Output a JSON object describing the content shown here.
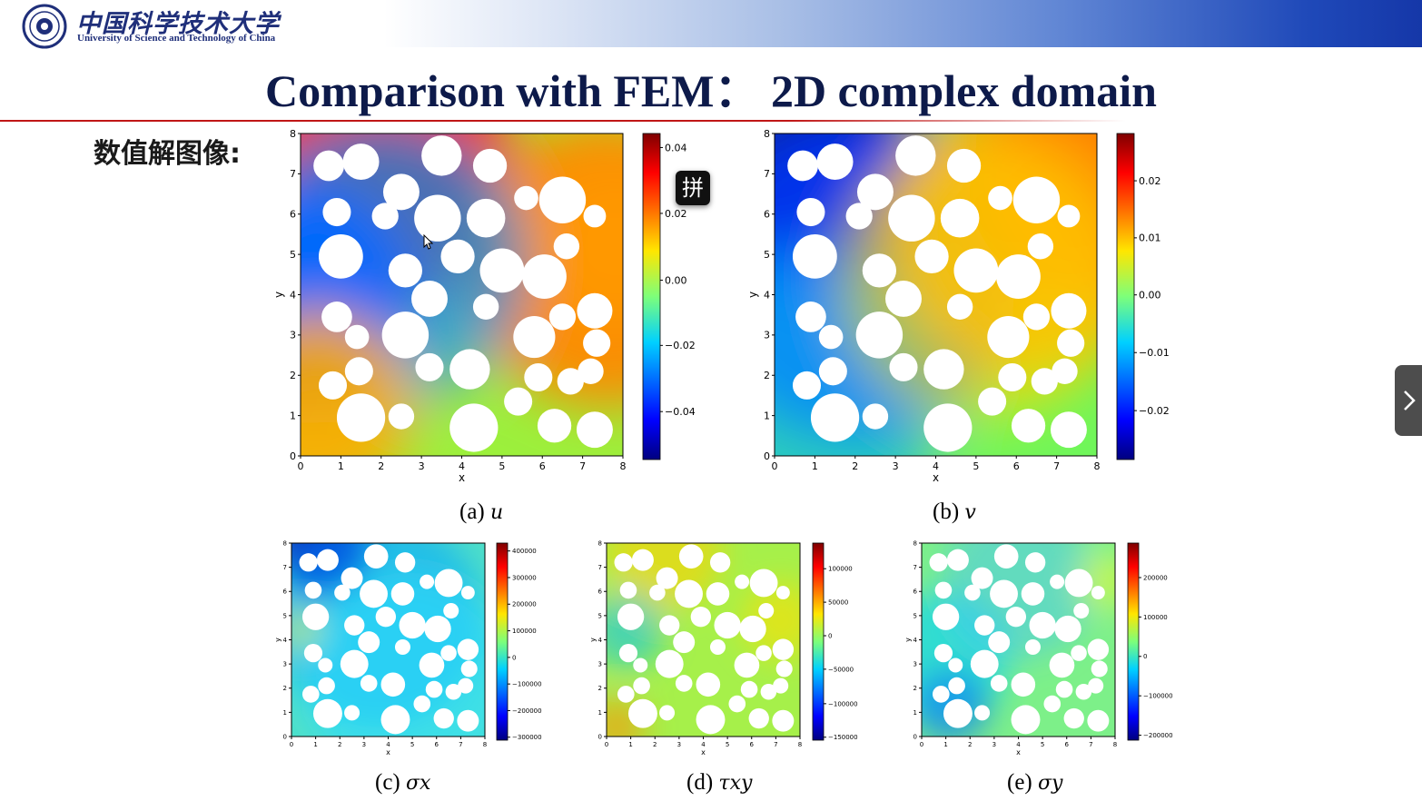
{
  "header": {
    "university_cn": "中国科学技术大学",
    "university_en": "University of Science and Technology of China"
  },
  "slide": {
    "title": "Comparison with FEM：  2D complex domain",
    "section_label": "数值解图像:"
  },
  "colors": {
    "accent_red": "#c01616",
    "header_blue": "#1537a8",
    "title": "#0d1a4a"
  },
  "overlays": {
    "ime_button": "拼",
    "next_icon": "chevron-right-icon"
  },
  "chart_data": [
    {
      "type": "heatmap",
      "caption": "(a)",
      "variable": "u",
      "xlabel": "x",
      "ylabel": "y",
      "xlim": [
        0,
        8
      ],
      "ylim": [
        0,
        8
      ],
      "x_ticks": [
        "0",
        "1",
        "2",
        "3",
        "4",
        "5",
        "6",
        "7",
        "8"
      ],
      "y_ticks": [
        "0",
        "1",
        "2",
        "3",
        "4",
        "5",
        "6",
        "7",
        "8"
      ],
      "colorbar_ticks": [
        "0.04",
        "0.02",
        "0.00",
        "−0.02",
        "−0.04"
      ]
    },
    {
      "type": "heatmap",
      "caption": "(b)",
      "variable": "v",
      "xlabel": "x",
      "ylabel": "y",
      "xlim": [
        0,
        8
      ],
      "ylim": [
        0,
        8
      ],
      "x_ticks": [
        "0",
        "1",
        "2",
        "3",
        "4",
        "5",
        "6",
        "7",
        "8"
      ],
      "y_ticks": [
        "0",
        "1",
        "2",
        "3",
        "4",
        "5",
        "6",
        "7",
        "8"
      ],
      "colorbar_ticks": [
        "0.02",
        "0.01",
        "0.00",
        "−0.01",
        "−0.02"
      ]
    },
    {
      "type": "heatmap",
      "caption": "(c)",
      "variable": "σx",
      "xlabel": "x",
      "ylabel": "y",
      "xlim": [
        0,
        8
      ],
      "ylim": [
        0,
        8
      ],
      "x_ticks": [
        "0",
        "1",
        "2",
        "3",
        "4",
        "5",
        "6",
        "7",
        "8"
      ],
      "y_ticks": [
        "0",
        "1",
        "2",
        "3",
        "4",
        "5",
        "6",
        "7",
        "8"
      ],
      "colorbar_ticks": [
        "400000",
        "300000",
        "200000",
        "100000",
        "0",
        "−100000",
        "−200000",
        "−300000"
      ]
    },
    {
      "type": "heatmap",
      "caption": "(d)",
      "variable": "τxy",
      "xlabel": "x",
      "ylabel": "y",
      "xlim": [
        0,
        8
      ],
      "ylim": [
        0,
        8
      ],
      "x_ticks": [
        "0",
        "1",
        "2",
        "3",
        "4",
        "5",
        "6",
        "7",
        "8"
      ],
      "y_ticks": [
        "0",
        "1",
        "2",
        "3",
        "4",
        "5",
        "6",
        "7",
        "8"
      ],
      "colorbar_ticks": [
        "100000",
        "50000",
        "0",
        "−50000",
        "−100000",
        "−150000"
      ]
    },
    {
      "type": "heatmap",
      "caption": "(e)",
      "variable": "σy",
      "xlabel": "x",
      "ylabel": "y",
      "xlim": [
        0,
        8
      ],
      "ylim": [
        0,
        8
      ],
      "x_ticks": [
        "0",
        "1",
        "2",
        "3",
        "4",
        "5",
        "6",
        "7",
        "8"
      ],
      "y_ticks": [
        "0",
        "1",
        "2",
        "3",
        "4",
        "5",
        "6",
        "7",
        "8"
      ],
      "colorbar_ticks": [
        "200000",
        "100000",
        "0",
        "−100000",
        "−200000"
      ]
    }
  ]
}
